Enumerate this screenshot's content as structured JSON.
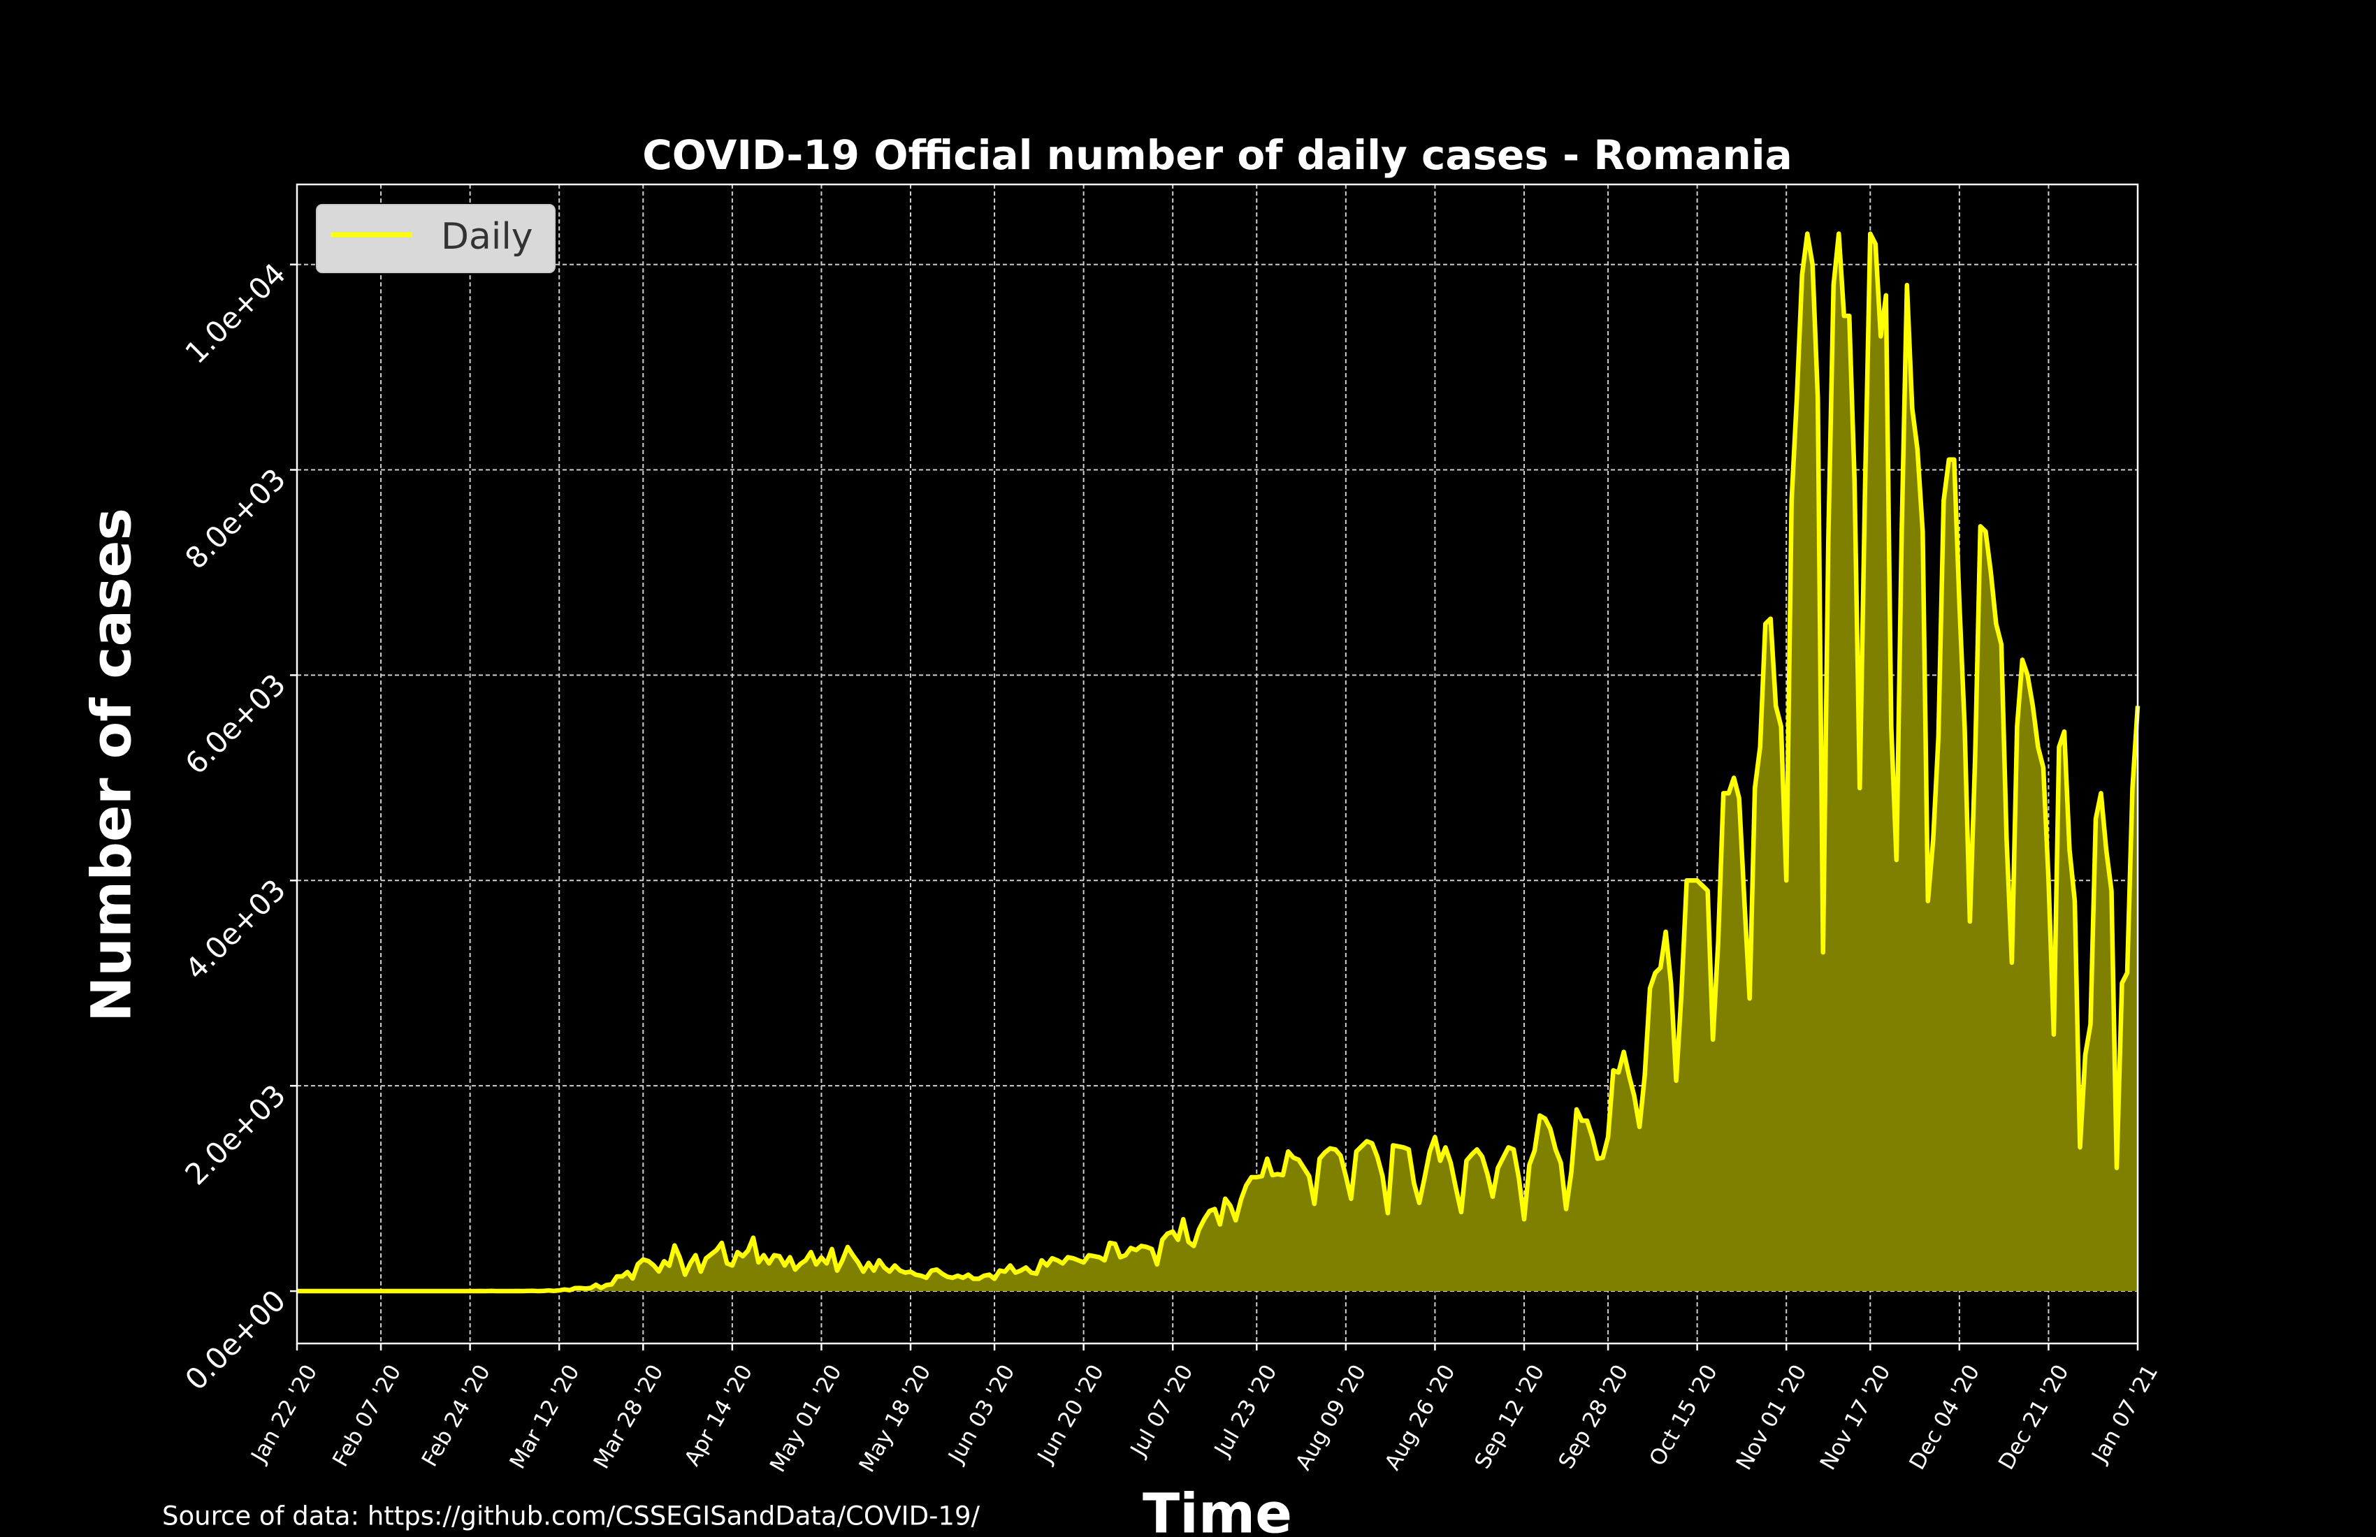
{
  "chart_data": {
    "type": "line",
    "title": "COVID-19 Official number of daily cases - Romania",
    "x_label": "Time",
    "y_label": "Number of cases",
    "source": "Source of data: https://github.com/CSSEGISandData/COVID-19/",
    "legend": "upper left",
    "grid": true,
    "xlim": [
      "2020-01-22",
      "2021-01-07"
    ],
    "xticks": [
      {
        "value": "2020-01-22",
        "label": "Jan 22 '20"
      },
      {
        "value": "2020-02-07",
        "label": "Feb 07 '20"
      },
      {
        "value": "2020-02-24",
        "label": "Feb 24 '20"
      },
      {
        "value": "2020-03-12",
        "label": "Mar 12 '20"
      },
      {
        "value": "2020-03-28",
        "label": "Mar 28 '20"
      },
      {
        "value": "2020-04-14",
        "label": "Apr 14 '20"
      },
      {
        "value": "2020-05-01",
        "label": "May 01 '20"
      },
      {
        "value": "2020-05-18",
        "label": "May 18 '20"
      },
      {
        "value": "2020-06-03",
        "label": "Jun 03 '20"
      },
      {
        "value": "2020-06-20",
        "label": "Jun 20 '20"
      },
      {
        "value": "2020-07-07",
        "label": "Jul 07 '20"
      },
      {
        "value": "2020-07-23",
        "label": "Jul 23 '20"
      },
      {
        "value": "2020-08-09",
        "label": "Aug 09 '20"
      },
      {
        "value": "2020-08-26",
        "label": "Aug 26 '20"
      },
      {
        "value": "2020-09-12",
        "label": "Sep 12 '20"
      },
      {
        "value": "2020-09-28",
        "label": "Sep 28 '20"
      },
      {
        "value": "2020-10-15",
        "label": "Oct 15 '20"
      },
      {
        "value": "2020-11-01",
        "label": "Nov 01 '20"
      },
      {
        "value": "2020-11-17",
        "label": "Nov 17 '20"
      },
      {
        "value": "2020-12-04",
        "label": "Dec 04 '20"
      },
      {
        "value": "2020-12-21",
        "label": "Dec 21 '20"
      },
      {
        "value": "2021-01-07",
        "label": "Jan 07 '21"
      }
    ],
    "ylim": [
      -510,
      10780
    ],
    "yticks": [
      {
        "value": 0,
        "label": "0.0e+00"
      },
      {
        "value": 2000,
        "label": "2.0e+03"
      },
      {
        "value": 4000,
        "label": "4.0e+03"
      },
      {
        "value": 6000,
        "label": "6.0e+03"
      },
      {
        "value": 8000,
        "label": "8.0e+03"
      },
      {
        "value": 10000,
        "label": "1.0e+04"
      }
    ],
    "x": [
      "2020-01-22",
      "2020-01-23",
      "2020-01-24",
      "2020-01-25",
      "2020-01-26",
      "2020-01-27",
      "2020-01-28",
      "2020-01-29",
      "2020-01-30",
      "2020-01-31",
      "2020-02-01",
      "2020-02-02",
      "2020-02-03",
      "2020-02-04",
      "2020-02-05",
      "2020-02-06",
      "2020-02-07",
      "2020-02-08",
      "2020-02-09",
      "2020-02-10",
      "2020-02-11",
      "2020-02-12",
      "2020-02-13",
      "2020-02-14",
      "2020-02-15",
      "2020-02-16",
      "2020-02-17",
      "2020-02-18",
      "2020-02-19",
      "2020-02-20",
      "2020-02-21",
      "2020-02-22",
      "2020-02-23",
      "2020-02-24",
      "2020-02-25",
      "2020-02-26",
      "2020-02-27",
      "2020-02-28",
      "2020-02-29",
      "2020-03-01",
      "2020-03-02",
      "2020-03-03",
      "2020-03-04",
      "2020-03-05",
      "2020-03-06",
      "2020-03-07",
      "2020-03-08",
      "2020-03-09",
      "2020-03-10",
      "2020-03-11",
      "2020-03-12",
      "2020-03-13",
      "2020-03-14",
      "2020-03-15",
      "2020-03-16",
      "2020-03-17",
      "2020-03-18",
      "2020-03-19",
      "2020-03-20",
      "2020-03-21",
      "2020-03-22",
      "2020-03-23",
      "2020-03-24",
      "2020-03-25",
      "2020-03-26",
      "2020-03-27",
      "2020-03-28",
      "2020-03-29",
      "2020-03-30",
      "2020-03-31",
      "2020-04-01",
      "2020-04-02",
      "2020-04-03",
      "2020-04-04",
      "2020-04-05",
      "2020-04-06",
      "2020-04-07",
      "2020-04-08",
      "2020-04-09",
      "2020-04-10",
      "2020-04-11",
      "2020-04-12",
      "2020-04-13",
      "2020-04-14",
      "2020-04-15",
      "2020-04-16",
      "2020-04-17",
      "2020-04-18",
      "2020-04-19",
      "2020-04-20",
      "2020-04-21",
      "2020-04-22",
      "2020-04-23",
      "2020-04-24",
      "2020-04-25",
      "2020-04-26",
      "2020-04-27",
      "2020-04-28",
      "2020-04-29",
      "2020-04-30",
      "2020-05-01",
      "2020-05-02",
      "2020-05-03",
      "2020-05-04",
      "2020-05-05",
      "2020-05-06",
      "2020-05-07",
      "2020-05-08",
      "2020-05-09",
      "2020-05-10",
      "2020-05-11",
      "2020-05-12",
      "2020-05-13",
      "2020-05-14",
      "2020-05-15",
      "2020-05-16",
      "2020-05-17",
      "2020-05-18",
      "2020-05-19",
      "2020-05-20",
      "2020-05-21",
      "2020-05-22",
      "2020-05-23",
      "2020-05-24",
      "2020-05-25",
      "2020-05-26",
      "2020-05-27",
      "2020-05-28",
      "2020-05-29",
      "2020-05-30",
      "2020-05-31",
      "2020-06-01",
      "2020-06-02",
      "2020-06-03",
      "2020-06-04",
      "2020-06-05",
      "2020-06-06",
      "2020-06-07",
      "2020-06-08",
      "2020-06-09",
      "2020-06-10",
      "2020-06-11",
      "2020-06-12",
      "2020-06-13",
      "2020-06-14",
      "2020-06-15",
      "2020-06-16",
      "2020-06-17",
      "2020-06-18",
      "2020-06-19",
      "2020-06-20",
      "2020-06-21",
      "2020-06-22",
      "2020-06-23",
      "2020-06-24",
      "2020-06-25",
      "2020-06-26",
      "2020-06-27",
      "2020-06-28",
      "2020-06-29",
      "2020-06-30",
      "2020-07-01",
      "2020-07-02",
      "2020-07-03",
      "2020-07-04",
      "2020-07-05",
      "2020-07-06",
      "2020-07-07",
      "2020-07-08",
      "2020-07-09",
      "2020-07-10",
      "2020-07-11",
      "2020-07-12",
      "2020-07-13",
      "2020-07-14",
      "2020-07-15",
      "2020-07-16",
      "2020-07-17",
      "2020-07-18",
      "2020-07-19",
      "2020-07-20",
      "2020-07-21",
      "2020-07-22",
      "2020-07-23",
      "2020-07-24",
      "2020-07-25",
      "2020-07-26",
      "2020-07-27",
      "2020-07-28",
      "2020-07-29",
      "2020-07-30",
      "2020-07-31",
      "2020-08-01",
      "2020-08-02",
      "2020-08-03",
      "2020-08-04",
      "2020-08-05",
      "2020-08-06",
      "2020-08-07",
      "2020-08-08",
      "2020-08-09",
      "2020-08-10",
      "2020-08-11",
      "2020-08-12",
      "2020-08-13",
      "2020-08-14",
      "2020-08-15",
      "2020-08-16",
      "2020-08-17",
      "2020-08-18",
      "2020-08-19",
      "2020-08-20",
      "2020-08-21",
      "2020-08-22",
      "2020-08-23",
      "2020-08-24",
      "2020-08-25",
      "2020-08-26",
      "2020-08-27",
      "2020-08-28",
      "2020-08-29",
      "2020-08-30",
      "2020-08-31",
      "2020-09-01",
      "2020-09-02",
      "2020-09-03",
      "2020-09-04",
      "2020-09-05",
      "2020-09-06",
      "2020-09-07",
      "2020-09-08",
      "2020-09-09",
      "2020-09-10",
      "2020-09-11",
      "2020-09-12",
      "2020-09-13",
      "2020-09-14",
      "2020-09-15",
      "2020-09-16",
      "2020-09-17",
      "2020-09-18",
      "2020-09-19",
      "2020-09-20",
      "2020-09-21",
      "2020-09-22",
      "2020-09-23",
      "2020-09-24",
      "2020-09-25",
      "2020-09-26",
      "2020-09-27",
      "2020-09-28",
      "2020-09-29",
      "2020-09-30",
      "2020-10-01",
      "2020-10-02",
      "2020-10-03",
      "2020-10-04",
      "2020-10-05",
      "2020-10-06",
      "2020-10-07",
      "2020-10-08",
      "2020-10-09",
      "2020-10-10",
      "2020-10-11",
      "2020-10-12",
      "2020-10-13",
      "2020-10-14",
      "2020-10-15",
      "2020-10-16",
      "2020-10-17",
      "2020-10-18",
      "2020-10-19",
      "2020-10-20",
      "2020-10-21",
      "2020-10-22",
      "2020-10-23",
      "2020-10-24",
      "2020-10-25",
      "2020-10-26",
      "2020-10-27",
      "2020-10-28",
      "2020-10-29",
      "2020-10-30",
      "2020-10-31",
      "2020-11-01",
      "2020-11-02",
      "2020-11-03",
      "2020-11-04",
      "2020-11-05",
      "2020-11-06",
      "2020-11-07",
      "2020-11-08",
      "2020-11-09",
      "2020-11-10",
      "2020-11-11",
      "2020-11-12",
      "2020-11-13",
      "2020-11-14",
      "2020-11-15",
      "2020-11-16",
      "2020-11-17",
      "2020-11-18",
      "2020-11-19",
      "2020-11-20",
      "2020-11-21",
      "2020-11-22",
      "2020-11-23",
      "2020-11-24",
      "2020-11-25",
      "2020-11-26",
      "2020-11-27",
      "2020-11-28",
      "2020-11-29",
      "2020-11-30",
      "2020-12-01",
      "2020-12-02",
      "2020-12-03",
      "2020-12-04",
      "2020-12-05",
      "2020-12-06",
      "2020-12-07",
      "2020-12-08",
      "2020-12-09",
      "2020-12-10",
      "2020-12-11",
      "2020-12-12",
      "2020-12-13",
      "2020-12-14",
      "2020-12-15",
      "2020-12-16",
      "2020-12-17",
      "2020-12-18",
      "2020-12-19",
      "2020-12-20",
      "2020-12-21",
      "2020-12-22",
      "2020-12-23",
      "2020-12-24",
      "2020-12-25",
      "2020-12-26",
      "2020-12-27",
      "2020-12-28",
      "2020-12-29",
      "2020-12-30",
      "2020-12-31",
      "2021-01-01",
      "2021-01-02",
      "2021-01-03",
      "2021-01-04",
      "2021-01-05",
      "2021-01-06",
      "2021-01-07"
    ],
    "series": [
      {
        "name": "Daily",
        "color": "#ffff00",
        "fill_color": "#808000",
        "values": [
          0,
          0,
          0,
          0,
          0,
          0,
          0,
          0,
          0,
          0,
          0,
          0,
          0,
          0,
          0,
          0,
          0,
          0,
          0,
          0,
          0,
          0,
          0,
          0,
          0,
          0,
          0,
          0,
          0,
          0,
          0,
          0,
          0,
          0,
          0,
          1,
          0,
          2,
          0,
          0,
          0,
          0,
          1,
          0,
          2,
          3,
          0,
          2,
          6,
          2,
          7,
          16,
          9,
          29,
          30,
          25,
          30,
          62,
          31,
          59,
          66,
          143,
          143,
          186,
          123,
          263,
          308,
          293,
          252,
          192,
          291,
          248,
          445,
          326,
          160,
          270,
          350,
          190,
          320,
          360,
          400,
          470,
          270,
          250,
          380,
          340,
          395,
          520,
          280,
          350,
          270,
          350,
          340,
          250,
          330,
          210,
          265,
          300,
          380,
          260,
          327,
          270,
          410,
          200,
          300,
          430,
          350,
          280,
          190,
          275,
          200,
          300,
          230,
          190,
          250,
          200,
          180,
          190,
          160,
          150,
          130,
          200,
          210,
          170,
          140,
          130,
          150,
          130,
          160,
          120,
          120,
          150,
          160,
          120,
          200,
          190,
          250,
          180,
          200,
          230,
          180,
          170,
          300,
          250,
          320,
          300,
          270,
          330,
          320,
          300,
          280,
          350,
          340,
          330,
          300,
          470,
          460,
          330,
          350,
          420,
          400,
          440,
          430,
          410,
          260,
          500,
          560,
          580,
          500,
          700,
          480,
          440,
          600,
          700,
          780,
          800,
          650,
          900,
          830,
          690,
          890,
          1030,
          1110,
          1110,
          1120,
          1290,
          1130,
          1140,
          1130,
          1360,
          1300,
          1280,
          1200,
          1120,
          850,
          1290,
          1350,
          1390,
          1380,
          1320,
          1120,
          900,
          1360,
          1410,
          1460,
          1440,
          1310,
          1120,
          760,
          1420,
          1410,
          1400,
          1380,
          1050,
          860,
          1100,
          1360,
          1500,
          1270,
          1400,
          1250,
          1000,
          770,
          1270,
          1330,
          1380,
          1310,
          1140,
          920,
          1200,
          1300,
          1400,
          1380,
          1100,
          700,
          1230,
          1370,
          1710,
          1680,
          1580,
          1380,
          1250,
          800,
          1160,
          1770,
          1660,
          1660,
          1500,
          1290,
          1300,
          1500,
          2150,
          2130,
          2330,
          2100,
          1900,
          1600,
          2100,
          2950,
          3100,
          3150,
          3500,
          3000,
          2050,
          2900,
          4000,
          4000,
          4000,
          3950,
          3900,
          2450,
          3400,
          4850,
          4850,
          5000,
          4800,
          3800,
          2850,
          4900,
          5300,
          6500,
          6550,
          5700,
          5500,
          4000,
          7700,
          8700,
          9900,
          10300,
          10000,
          8700,
          3300,
          7300,
          9800,
          10300,
          9500,
          9500,
          7900,
          4900,
          7800,
          10300,
          10200,
          9300,
          9700,
          5500,
          4200,
          7400,
          9800,
          8600,
          8200,
          7400,
          3800,
          4400,
          5400,
          7700,
          8100,
          8100,
          6700,
          5500,
          3600,
          5200,
          7450,
          7400,
          7000,
          6500,
          6300,
          4400,
          3200,
          5500,
          6150,
          6000,
          5700,
          5300,
          5100,
          4000,
          2500,
          5300,
          5450,
          4300,
          3800,
          1400,
          2300,
          2600,
          4600,
          4850,
          4300,
          3900,
          1200,
          3000,
          3100,
          4900,
          5700
        ]
      }
    ]
  }
}
